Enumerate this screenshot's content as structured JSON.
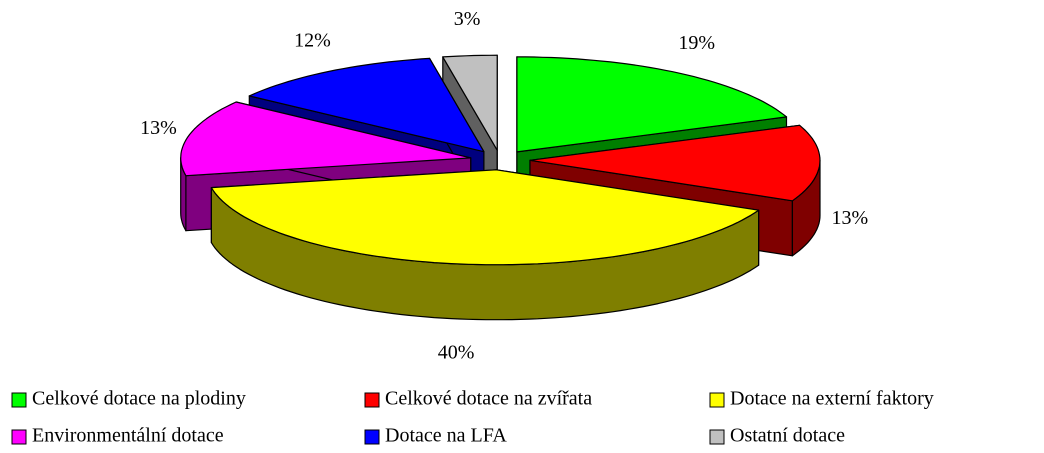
{
  "chart_data": {
    "type": "pie",
    "categories": [
      "Celkové dotace na plodiny",
      "Celkové dotace na zvířata",
      "Dotace na externí faktory",
      "Environmentální dotace",
      "Dotace na LFA",
      "Ostatní dotace"
    ],
    "values": [
      19,
      13,
      40,
      13,
      12,
      3
    ],
    "value_labels": [
      "19%",
      "13%",
      "40%",
      "13%",
      "12%",
      "3%"
    ],
    "colors": [
      "#00ff00",
      "#ff0000",
      "#ffff00",
      "#ff00ff",
      "#0000ff",
      "#c0c0c0"
    ],
    "legend": "bottom"
  }
}
